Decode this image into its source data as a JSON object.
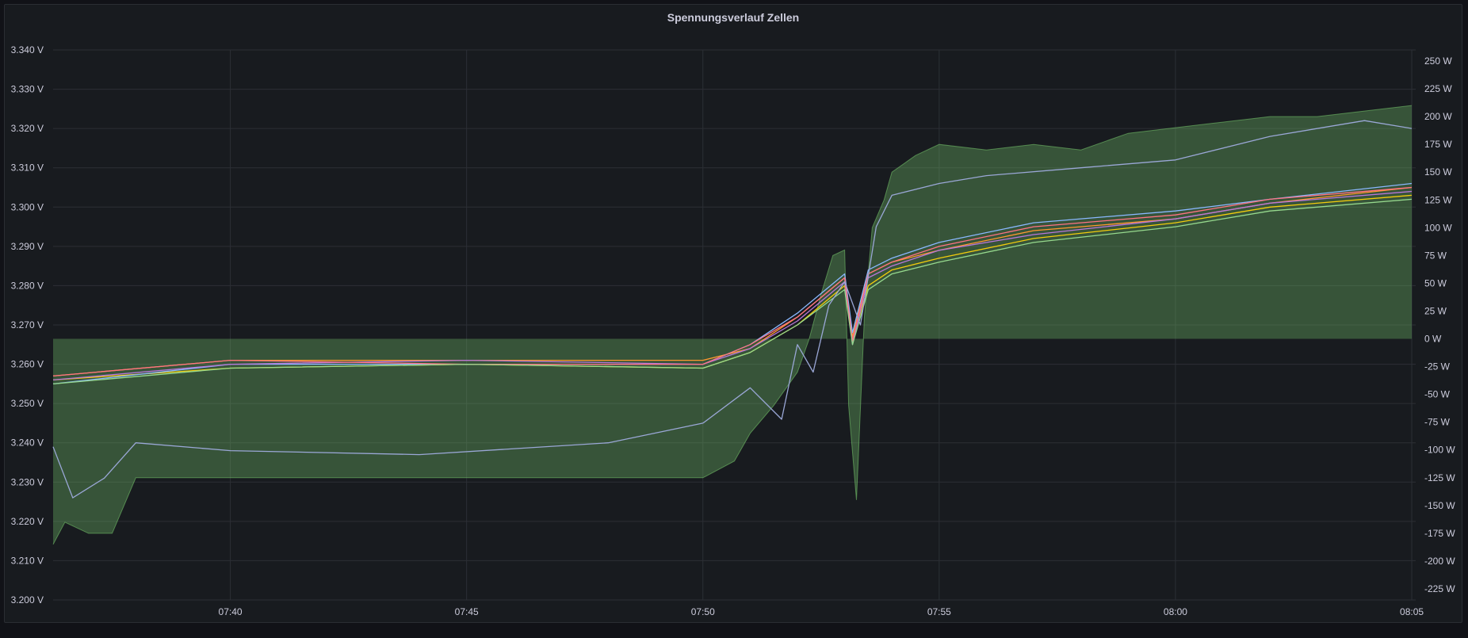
{
  "panel": {
    "title": "Spennungsverlauf Zellen"
  },
  "chart_data": {
    "type": "line",
    "title": "Spennungsverlauf Zellen",
    "x_ticks": [
      "07:40",
      "07:45",
      "07:50",
      "07:55",
      "08:00",
      "08:05"
    ],
    "x_range": [
      "07:36:15",
      "08:05:05"
    ],
    "y_left": {
      "unit": "V",
      "range": [
        3.2,
        3.34
      ],
      "ticks": [
        "3.200 V",
        "3.210 V",
        "3.220 V",
        "3.230 V",
        "3.240 V",
        "3.250 V",
        "3.260 V",
        "3.270 V",
        "3.280 V",
        "3.290 V",
        "3.300 V",
        "3.310 V",
        "3.320 V",
        "3.330 V",
        "3.340 V"
      ]
    },
    "y_right": {
      "unit": "W",
      "range": [
        -235,
        260
      ],
      "ticks": [
        "250 W",
        "225 W",
        "200 W",
        "175 W",
        "150 W",
        "125 W",
        "100 W",
        "75 W",
        "50 W",
        "25 W",
        "0 W",
        "-25 W",
        "-50 W",
        "-75 W",
        "-100 W",
        "-125 W",
        "-150 W",
        "-175 W",
        "-200 W",
        "-225 W"
      ]
    },
    "grid": true,
    "legend": "none",
    "series": [
      {
        "kind": "area",
        "axis": "right",
        "color": "#73bf69",
        "x": [
          "07:36:15",
          "07:36:30",
          "07:37:00",
          "07:37:30",
          "07:38:00",
          "07:38:30",
          "07:40:00",
          "07:45:00",
          "07:48:00",
          "07:50:00",
          "07:50:40",
          "07:51:00",
          "07:51:30",
          "07:52:00",
          "07:52:15",
          "07:52:30",
          "07:52:45",
          "07:53:00",
          "07:53:05",
          "07:53:15",
          "07:53:25",
          "07:53:35",
          "07:53:50",
          "07:54:00",
          "07:54:30",
          "07:55:00",
          "07:56:00",
          "07:57:00",
          "07:58:00",
          "07:59:00",
          "08:00:00",
          "08:01:00",
          "08:02:00",
          "08:03:00",
          "08:04:00",
          "08:05:00"
        ],
        "values": [
          -185,
          -165,
          -175,
          -175,
          -125,
          -125,
          -125,
          -125,
          -125,
          -125,
          -110,
          -85,
          -60,
          -30,
          0,
          40,
          75,
          80,
          -60,
          -145,
          20,
          100,
          125,
          150,
          165,
          175,
          170,
          175,
          170,
          185,
          190,
          195,
          200,
          200,
          205,
          210
        ]
      },
      {
        "kind": "line",
        "axis": "left",
        "color": "#f2cc0c",
        "x": [
          "07:36:15",
          "07:40:00",
          "07:45:00",
          "07:50:00",
          "07:51:00",
          "07:52:00",
          "07:53:00",
          "07:53:10",
          "07:53:30",
          "07:54:00",
          "07:55:00",
          "07:57:00",
          "08:00:00",
          "08:02:00",
          "08:05:00"
        ],
        "values": [
          3.256,
          3.259,
          3.26,
          3.259,
          3.263,
          3.27,
          3.28,
          3.266,
          3.28,
          3.284,
          3.287,
          3.292,
          3.296,
          3.3,
          3.303
        ]
      },
      {
        "kind": "line",
        "axis": "left",
        "color": "#ff9830",
        "x": [
          "07:36:15",
          "07:40:00",
          "07:45:00",
          "07:50:00",
          "07:51:00",
          "07:52:00",
          "07:53:00",
          "07:53:10",
          "07:53:30",
          "07:54:00",
          "07:55:00",
          "07:57:00",
          "08:00:00",
          "08:02:00",
          "08:05:00"
        ],
        "values": [
          3.257,
          3.261,
          3.261,
          3.261,
          3.264,
          3.272,
          3.282,
          3.267,
          3.283,
          3.286,
          3.289,
          3.294,
          3.297,
          3.301,
          3.305
        ]
      },
      {
        "kind": "line",
        "axis": "left",
        "color": "#8ab8ff",
        "x": [
          "07:36:15",
          "07:40:00",
          "07:45:00",
          "07:50:00",
          "07:51:00",
          "07:52:00",
          "07:53:00",
          "07:53:10",
          "07:53:30",
          "07:54:00",
          "07:55:00",
          "07:57:00",
          "08:00:00",
          "08:02:00",
          "08:05:00"
        ],
        "values": [
          3.255,
          3.26,
          3.26,
          3.26,
          3.265,
          3.273,
          3.283,
          3.268,
          3.284,
          3.287,
          3.291,
          3.296,
          3.299,
          3.302,
          3.306
        ]
      },
      {
        "kind": "line",
        "axis": "left",
        "color": "#b877d9",
        "x": [
          "07:36:15",
          "07:40:00",
          "07:45:00",
          "07:50:00",
          "07:51:00",
          "07:52:00",
          "07:53:00",
          "07:53:10",
          "07:53:30",
          "07:54:00",
          "07:55:00",
          "07:57:00",
          "08:00:00",
          "08:02:00",
          "08:05:00"
        ],
        "values": [
          3.256,
          3.26,
          3.261,
          3.26,
          3.264,
          3.271,
          3.281,
          3.265,
          3.282,
          3.285,
          3.289,
          3.293,
          3.297,
          3.301,
          3.304
        ]
      },
      {
        "kind": "line",
        "axis": "left",
        "color": "#ff7383",
        "x": [
          "07:36:15",
          "07:40:00",
          "07:45:00",
          "07:50:00",
          "07:51:00",
          "07:52:00",
          "07:53:00",
          "07:53:10",
          "07:53:30",
          "07:54:00",
          "07:55:00",
          "07:57:00",
          "08:00:00",
          "08:02:00",
          "08:05:00"
        ],
        "values": [
          3.257,
          3.261,
          3.26,
          3.26,
          3.265,
          3.272,
          3.282,
          3.266,
          3.283,
          3.286,
          3.29,
          3.295,
          3.298,
          3.302,
          3.305
        ]
      },
      {
        "kind": "line",
        "axis": "left",
        "color": "#96d98d",
        "x": [
          "07:36:15",
          "07:40:00",
          "07:45:00",
          "07:50:00",
          "07:51:00",
          "07:52:00",
          "07:53:00",
          "07:53:10",
          "07:53:30",
          "07:54:00",
          "07:55:00",
          "07:57:00",
          "08:00:00",
          "08:02:00",
          "08:05:00"
        ],
        "values": [
          3.255,
          3.259,
          3.26,
          3.259,
          3.263,
          3.27,
          3.279,
          3.265,
          3.279,
          3.283,
          3.286,
          3.291,
          3.295,
          3.299,
          3.302
        ]
      },
      {
        "kind": "line",
        "axis": "left",
        "color": "#9aa7d6",
        "x": [
          "07:36:15",
          "07:36:40",
          "07:37:20",
          "07:38:00",
          "07:40:00",
          "07:44:00",
          "07:48:00",
          "07:50:00",
          "07:51:00",
          "07:51:40",
          "07:52:00",
          "07:52:20",
          "07:52:40",
          "07:53:00",
          "07:53:20",
          "07:53:40",
          "07:54:00",
          "07:55:00",
          "07:56:00",
          "07:58:00",
          "08:00:00",
          "08:02:00",
          "08:04:00",
          "08:05:00"
        ],
        "values": [
          3.239,
          3.226,
          3.231,
          3.24,
          3.238,
          3.237,
          3.24,
          3.245,
          3.254,
          3.246,
          3.265,
          3.258,
          3.275,
          3.281,
          3.27,
          3.295,
          3.303,
          3.306,
          3.308,
          3.31,
          3.312,
          3.318,
          3.322,
          3.32
        ]
      }
    ]
  }
}
